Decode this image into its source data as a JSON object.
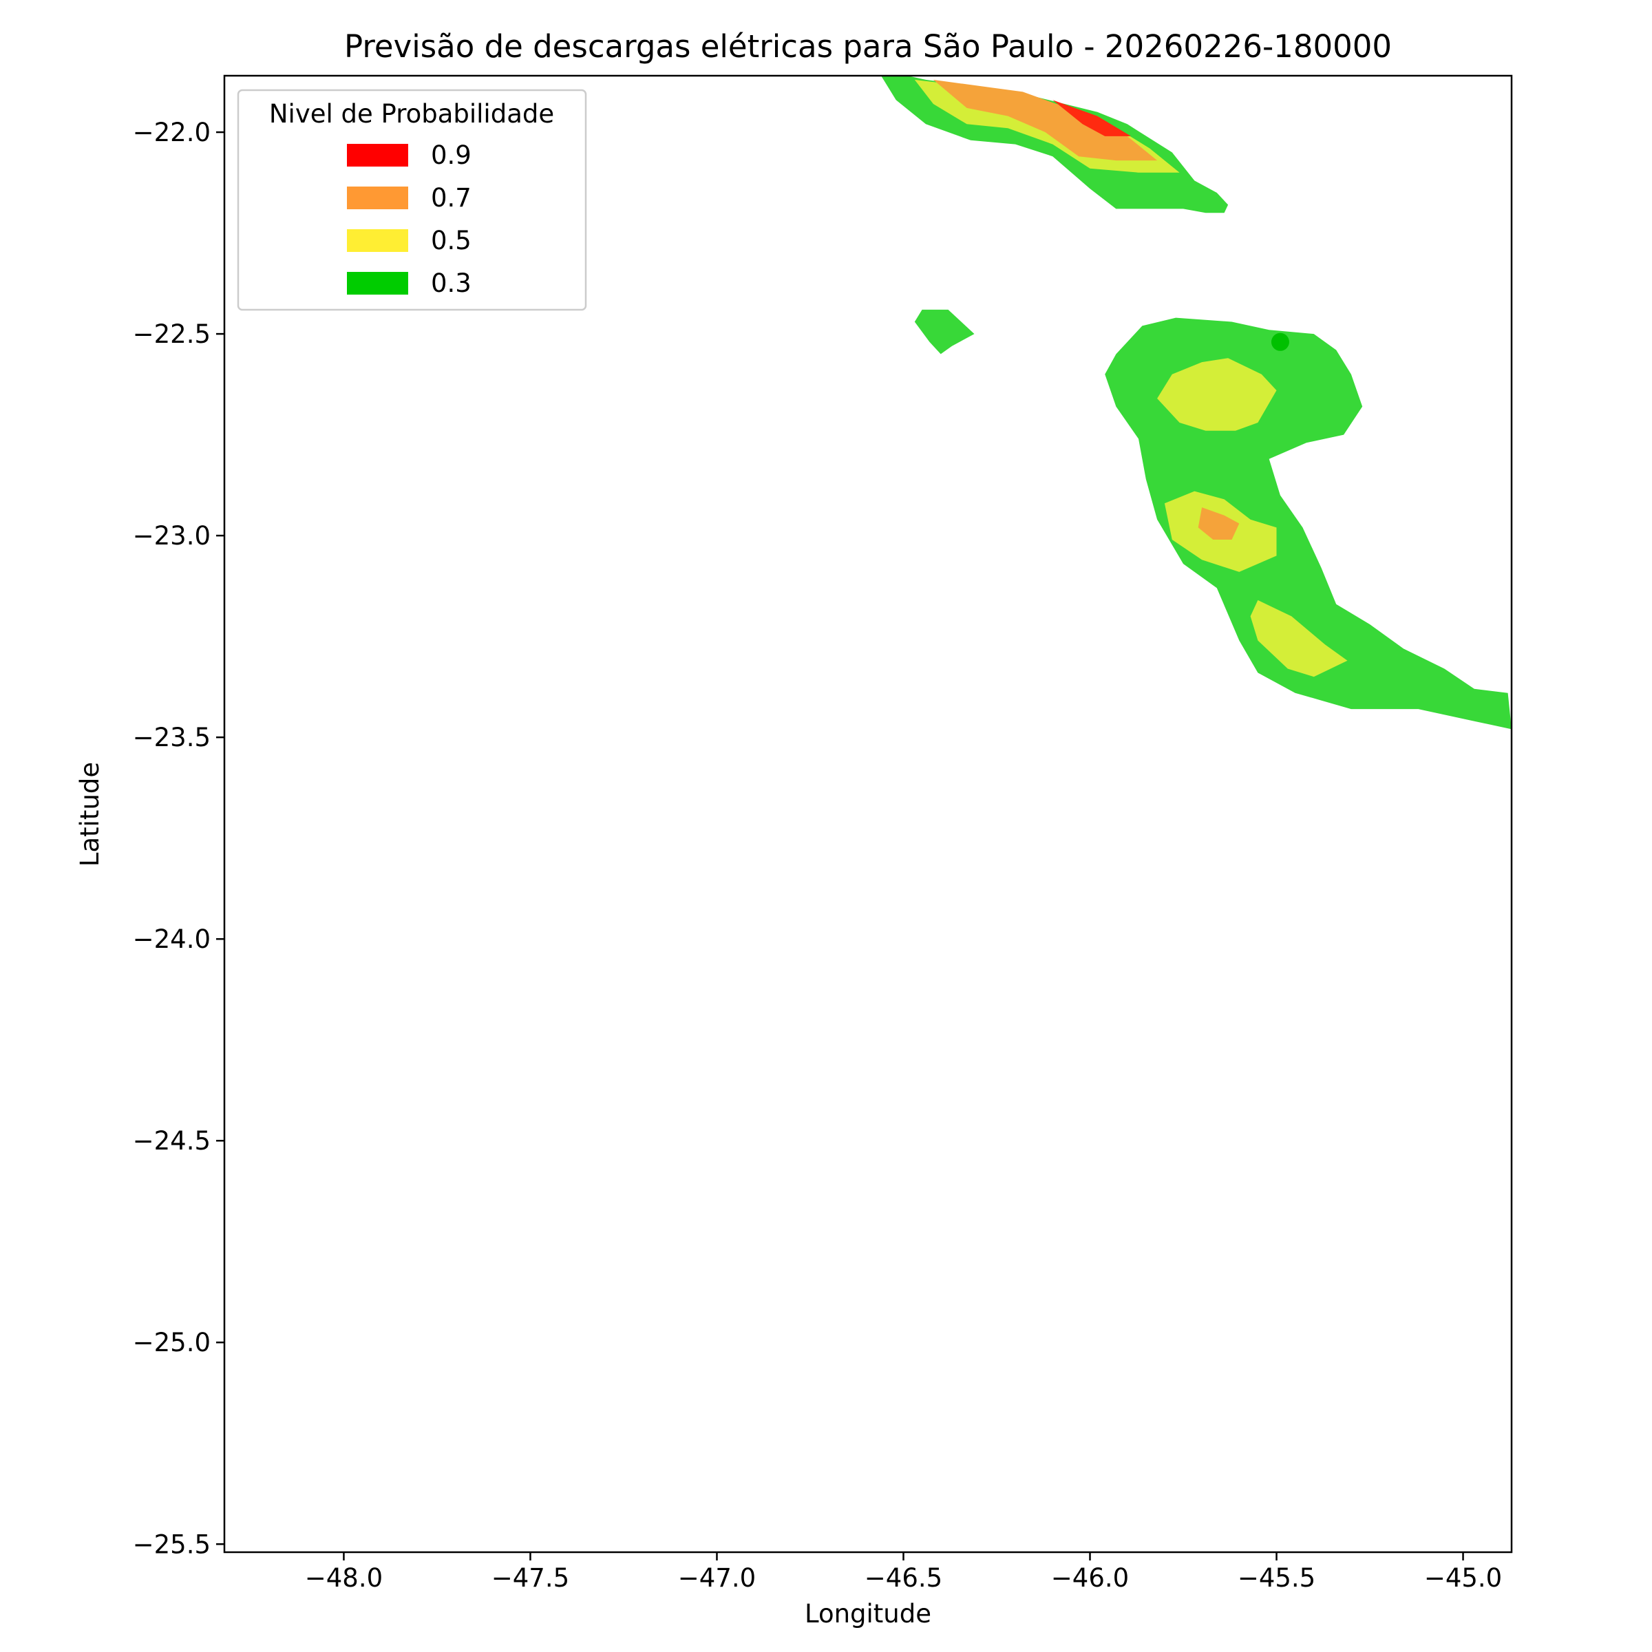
{
  "chart_data": {
    "type": "contourf",
    "title": "Previsão de descargas elétricas para São Paulo - 20260226-180000",
    "xlabel": "Longitude",
    "ylabel": "Latitude",
    "xlim": [
      -48.32,
      -44.87
    ],
    "ylim": [
      -25.52,
      -21.86
    ],
    "xticks": [
      -48.0,
      -47.5,
      -47.0,
      -46.5,
      -46.0,
      -45.5,
      -45.0
    ],
    "yticks": [
      -22.0,
      -22.5,
      -23.0,
      -23.5,
      -24.0,
      -24.5,
      -25.0,
      -25.5
    ],
    "xtick_labels": [
      "−48.0",
      "−47.5",
      "−47.0",
      "−46.5",
      "−46.0",
      "−45.5",
      "−45.0"
    ],
    "ytick_labels": [
      "−22.0",
      "−22.5",
      "−23.0",
      "−23.5",
      "−24.0",
      "−24.5",
      "−25.0",
      "−25.5"
    ],
    "grid": false,
    "legend": {
      "title": "Nivel de Probabilidade",
      "position": "top-left",
      "entries": [
        {
          "label": "0.9",
          "color": "#ff0000"
        },
        {
          "label": "0.7",
          "color": "#ff9933"
        },
        {
          "label": "0.5",
          "color": "#ffee33"
        },
        {
          "label": "0.3",
          "color": "#00cc00"
        }
      ]
    },
    "fill_colors": {
      "0.3": "#38d838",
      "0.5": "#d4ee38",
      "0.7": "#f5a33a",
      "0.9": "#ff2a10"
    },
    "regions": [
      {
        "level": 0.3,
        "name": "north-band",
        "points": [
          [
            -46.56,
            -21.86
          ],
          [
            -46.49,
            -21.86
          ],
          [
            -46.44,
            -21.87
          ],
          [
            -46.2,
            -21.9
          ],
          [
            -45.98,
            -21.95
          ],
          [
            -45.9,
            -21.98
          ],
          [
            -45.78,
            -22.05
          ],
          [
            -45.72,
            -22.12
          ],
          [
            -45.66,
            -22.15
          ],
          [
            -45.63,
            -22.18
          ],
          [
            -45.64,
            -22.2
          ],
          [
            -45.69,
            -22.2
          ],
          [
            -45.75,
            -22.19
          ],
          [
            -45.83,
            -22.19
          ],
          [
            -45.93,
            -22.19
          ],
          [
            -46.0,
            -22.14
          ],
          [
            -46.1,
            -22.06
          ],
          [
            -46.2,
            -22.03
          ],
          [
            -46.32,
            -22.02
          ],
          [
            -46.44,
            -21.98
          ],
          [
            -46.52,
            -21.92
          ]
        ]
      },
      {
        "level": 0.5,
        "name": "north-band",
        "points": [
          [
            -46.47,
            -21.87
          ],
          [
            -46.2,
            -21.9
          ],
          [
            -45.98,
            -21.96
          ],
          [
            -45.84,
            -22.04
          ],
          [
            -45.76,
            -22.1
          ],
          [
            -45.87,
            -22.1
          ],
          [
            -46.0,
            -22.09
          ],
          [
            -46.1,
            -22.03
          ],
          [
            -46.22,
            -21.99
          ],
          [
            -46.33,
            -21.98
          ],
          [
            -46.42,
            -21.93
          ]
        ]
      },
      {
        "level": 0.7,
        "name": "north-band",
        "points": [
          [
            -46.42,
            -21.87
          ],
          [
            -46.18,
            -21.9
          ],
          [
            -46.0,
            -21.96
          ],
          [
            -45.9,
            -22.01
          ],
          [
            -45.82,
            -22.07
          ],
          [
            -45.93,
            -22.07
          ],
          [
            -46.03,
            -22.06
          ],
          [
            -46.12,
            -22.0
          ],
          [
            -46.22,
            -21.96
          ],
          [
            -46.33,
            -21.94
          ]
        ]
      },
      {
        "level": 0.9,
        "name": "north-band",
        "points": [
          [
            -46.1,
            -21.92
          ],
          [
            -45.98,
            -21.96
          ],
          [
            -45.89,
            -22.01
          ],
          [
            -45.96,
            -22.01
          ],
          [
            -46.02,
            -21.98
          ]
        ]
      },
      {
        "level": 0.3,
        "name": "small-cell",
        "points": [
          [
            -46.45,
            -22.44
          ],
          [
            -46.38,
            -22.44
          ],
          [
            -46.31,
            -22.5
          ],
          [
            -46.37,
            -22.53
          ],
          [
            -46.4,
            -22.55
          ],
          [
            -46.43,
            -22.52
          ],
          [
            -46.47,
            -22.47
          ]
        ]
      },
      {
        "level": 0.3,
        "name": "arc-cell",
        "points": [
          [
            -45.86,
            -22.48
          ],
          [
            -45.77,
            -22.46
          ],
          [
            -45.62,
            -22.47
          ],
          [
            -45.52,
            -22.49
          ],
          [
            -45.4,
            -22.5
          ],
          [
            -45.34,
            -22.54
          ],
          [
            -45.3,
            -22.6
          ],
          [
            -45.27,
            -22.68
          ],
          [
            -45.32,
            -22.75
          ],
          [
            -45.42,
            -22.77
          ],
          [
            -45.52,
            -22.81
          ],
          [
            -45.49,
            -22.9
          ],
          [
            -45.43,
            -22.98
          ],
          [
            -45.38,
            -23.08
          ],
          [
            -45.34,
            -23.17
          ],
          [
            -45.25,
            -23.22
          ],
          [
            -45.16,
            -23.28
          ],
          [
            -45.05,
            -23.33
          ],
          [
            -44.97,
            -23.38
          ],
          [
            -44.88,
            -23.39
          ],
          [
            -44.87,
            -23.48
          ],
          [
            -44.97,
            -23.46
          ],
          [
            -45.12,
            -23.43
          ],
          [
            -45.3,
            -23.43
          ],
          [
            -45.45,
            -23.39
          ],
          [
            -45.55,
            -23.34
          ],
          [
            -45.6,
            -23.26
          ],
          [
            -45.66,
            -23.13
          ],
          [
            -45.75,
            -23.07
          ],
          [
            -45.82,
            -22.96
          ],
          [
            -45.85,
            -22.86
          ],
          [
            -45.87,
            -22.76
          ],
          [
            -45.93,
            -22.68
          ],
          [
            -45.96,
            -22.6
          ],
          [
            -45.93,
            -22.55
          ]
        ]
      },
      {
        "level": 0.5,
        "name": "arc-cell",
        "points": [
          [
            -45.7,
            -22.57
          ],
          [
            -45.63,
            -22.56
          ],
          [
            -45.54,
            -22.6
          ],
          [
            -45.5,
            -22.64
          ],
          [
            -45.55,
            -22.72
          ],
          [
            -45.61,
            -22.74
          ],
          [
            -45.69,
            -22.74
          ],
          [
            -45.76,
            -22.72
          ],
          [
            -45.82,
            -22.66
          ],
          [
            -45.78,
            -22.6
          ]
        ]
      },
      {
        "level": 0.5,
        "name": "arc-cell",
        "points": [
          [
            -45.72,
            -22.89
          ],
          [
            -45.64,
            -22.91
          ],
          [
            -45.57,
            -22.96
          ],
          [
            -45.5,
            -22.98
          ],
          [
            -45.5,
            -23.05
          ],
          [
            -45.6,
            -23.09
          ],
          [
            -45.7,
            -23.06
          ],
          [
            -45.78,
            -23.01
          ],
          [
            -45.8,
            -22.92
          ]
        ]
      },
      {
        "level": 0.5,
        "name": "arc-cell",
        "points": [
          [
            -45.55,
            -23.16
          ],
          [
            -45.46,
            -23.2
          ],
          [
            -45.37,
            -23.27
          ],
          [
            -45.31,
            -23.31
          ],
          [
            -45.4,
            -23.35
          ],
          [
            -45.47,
            -23.33
          ],
          [
            -45.55,
            -23.26
          ],
          [
            -45.57,
            -23.2
          ]
        ]
      },
      {
        "level": 0.7,
        "name": "arc-cell",
        "points": [
          [
            -45.7,
            -22.93
          ],
          [
            -45.64,
            -22.95
          ],
          [
            -45.6,
            -22.97
          ],
          [
            -45.62,
            -23.01
          ],
          [
            -45.67,
            -23.01
          ],
          [
            -45.71,
            -22.98
          ]
        ]
      }
    ],
    "marker": {
      "lon": -45.49,
      "lat": -22.52,
      "color": "#00c000"
    }
  }
}
